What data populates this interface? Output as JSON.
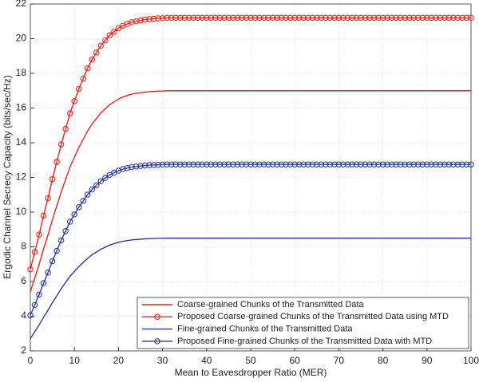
{
  "chart_data": {
    "type": "line",
    "xlabel": "Mean to Eavesdropper Ratio (MER)",
    "ylabel": "Ergodic Channel Secrecy Capacity (bits/sec/Hz)",
    "x": [
      0,
      1,
      2,
      3,
      4,
      5,
      6,
      7,
      8,
      9,
      10,
      11,
      12,
      13,
      14,
      15,
      16,
      17,
      18,
      19,
      20,
      21,
      22,
      23,
      24,
      25,
      26,
      27,
      28,
      29,
      30,
      31,
      32,
      33,
      34,
      35,
      36,
      37,
      38,
      39,
      40,
      41,
      42,
      43,
      44,
      45,
      46,
      47,
      48,
      49,
      50,
      51,
      52,
      53,
      54,
      55,
      56,
      57,
      58,
      59,
      60,
      61,
      62,
      63,
      64,
      65,
      66,
      67,
      68,
      69,
      70,
      71,
      72,
      73,
      74,
      75,
      76,
      77,
      78,
      79,
      80,
      81,
      82,
      83,
      84,
      85,
      86,
      87,
      88,
      89,
      90,
      91,
      92,
      93,
      94,
      95,
      96,
      97,
      98,
      99,
      100
    ],
    "xlim": [
      0,
      100
    ],
    "xticks": [
      0,
      10,
      20,
      30,
      40,
      50,
      60,
      70,
      80,
      90,
      100
    ],
    "ylim": [
      2,
      22
    ],
    "yticks": [
      2,
      4,
      6,
      8,
      10,
      12,
      14,
      16,
      18,
      20,
      22
    ],
    "grid": true,
    "legend": "lower right",
    "series": [
      {
        "name": "Coarse-grained Chunks of the Transmitted Data",
        "color": "#e8231f",
        "marker": false,
        "values": [
          5.4,
          6.2,
          7.0,
          7.88,
          8.68,
          9.56,
          10.36,
          11.16,
          11.88,
          12.6,
          13.16,
          13.72,
          14.2,
          14.68,
          15.08,
          15.4,
          15.72,
          15.96,
          16.2,
          16.36,
          16.52,
          16.64,
          16.72,
          16.8,
          16.84,
          16.88,
          16.92,
          16.94,
          16.96,
          16.98,
          16.98,
          17,
          17,
          17,
          17,
          17,
          17,
          17,
          17,
          17,
          17,
          17,
          17,
          17,
          17,
          17,
          17,
          17,
          17,
          17,
          17,
          17,
          17,
          17,
          17,
          17,
          17,
          17,
          17,
          17,
          17,
          17,
          17,
          17,
          17,
          17,
          17,
          17,
          17,
          17,
          17,
          17,
          17,
          17,
          17,
          17,
          17,
          17,
          17,
          17,
          17,
          17,
          17,
          17,
          17,
          17,
          17,
          17,
          17,
          17,
          17,
          17,
          17,
          17,
          17,
          17,
          17,
          17,
          17,
          17,
          17
        ]
      },
      {
        "name": "Proposed Coarse-grained Chunks of the Transmitted Data using MTD",
        "color": "#e8231f",
        "marker": true,
        "values": [
          6.7,
          7.7,
          8.7,
          9.8,
          10.8,
          11.9,
          12.9,
          13.9,
          14.8,
          15.7,
          16.4,
          17.1,
          17.7,
          18.3,
          18.8,
          19.2,
          19.6,
          19.9,
          20.2,
          20.4,
          20.6,
          20.75,
          20.85,
          20.95,
          21.0,
          21.05,
          21.1,
          21.13,
          21.15,
          21.17,
          21.18,
          21.2,
          21.2,
          21.2,
          21.2,
          21.2,
          21.2,
          21.2,
          21.2,
          21.2,
          21.2,
          21.2,
          21.2,
          21.2,
          21.2,
          21.2,
          21.2,
          21.2,
          21.2,
          21.2,
          21.2,
          21.2,
          21.2,
          21.2,
          21.2,
          21.2,
          21.2,
          21.2,
          21.2,
          21.2,
          21.2,
          21.2,
          21.2,
          21.2,
          21.2,
          21.2,
          21.2,
          21.2,
          21.2,
          21.2,
          21.2,
          21.2,
          21.2,
          21.2,
          21.2,
          21.2,
          21.2,
          21.2,
          21.2,
          21.2,
          21.2,
          21.2,
          21.2,
          21.2,
          21.2,
          21.2,
          21.2,
          21.2,
          21.2,
          21.2,
          21.2,
          21.2,
          21.2,
          21.2,
          21.2,
          21.2,
          21.2,
          21.2,
          21.2,
          21.2,
          21.2
        ]
      },
      {
        "name": "Fine-grained Chunks of the Transmitted Data",
        "color": "#2e3b98",
        "marker": false,
        "values": [
          2.7,
          3.1,
          3.5,
          3.94,
          4.34,
          4.78,
          5.18,
          5.58,
          5.94,
          6.3,
          6.58,
          6.86,
          7.1,
          7.34,
          7.54,
          7.7,
          7.86,
          7.98,
          8.1,
          8.18,
          8.26,
          8.32,
          8.36,
          8.4,
          8.42,
          8.44,
          8.46,
          8.47,
          8.48,
          8.49,
          8.49,
          8.5,
          8.5,
          8.5,
          8.5,
          8.5,
          8.5,
          8.5,
          8.5,
          8.5,
          8.5,
          8.5,
          8.5,
          8.5,
          8.5,
          8.5,
          8.5,
          8.5,
          8.5,
          8.5,
          8.5,
          8.5,
          8.5,
          8.5,
          8.5,
          8.5,
          8.5,
          8.5,
          8.5,
          8.5,
          8.5,
          8.5,
          8.5,
          8.5,
          8.5,
          8.5,
          8.5,
          8.5,
          8.5,
          8.5,
          8.5,
          8.5,
          8.5,
          8.5,
          8.5,
          8.5,
          8.5,
          8.5,
          8.5,
          8.5,
          8.5,
          8.5,
          8.5,
          8.5,
          8.5,
          8.5,
          8.5,
          8.5,
          8.5,
          8.5,
          8.5,
          8.5,
          8.5,
          8.5,
          8.5,
          8.5,
          8.5,
          8.5,
          8.5,
          8.5,
          8.5
        ]
      },
      {
        "name": "Proposed Fine-grained Chunks of the Transmitted Data with MTD",
        "color": "#2e3b98",
        "marker": true,
        "values": [
          4.05,
          4.65,
          5.25,
          5.91,
          6.51,
          7.17,
          7.77,
          8.37,
          8.91,
          9.45,
          9.87,
          10.29,
          10.65,
          11.01,
          11.31,
          11.55,
          11.79,
          11.97,
          12.15,
          12.27,
          12.39,
          12.48,
          12.54,
          12.6,
          12.63,
          12.66,
          12.69,
          12.71,
          12.72,
          12.73,
          12.74,
          12.75,
          12.75,
          12.75,
          12.75,
          12.75,
          12.75,
          12.75,
          12.75,
          12.75,
          12.75,
          12.75,
          12.75,
          12.75,
          12.75,
          12.75,
          12.75,
          12.75,
          12.75,
          12.75,
          12.75,
          12.75,
          12.75,
          12.75,
          12.75,
          12.75,
          12.75,
          12.75,
          12.75,
          12.75,
          12.75,
          12.75,
          12.75,
          12.75,
          12.75,
          12.75,
          12.75,
          12.75,
          12.75,
          12.75,
          12.75,
          12.75,
          12.75,
          12.75,
          12.75,
          12.75,
          12.75,
          12.75,
          12.75,
          12.75,
          12.75,
          12.75,
          12.75,
          12.75,
          12.75,
          12.75,
          12.75,
          12.75,
          12.75,
          12.75,
          12.75,
          12.75,
          12.75,
          12.75,
          12.75,
          12.75,
          12.75,
          12.75,
          12.75,
          12.75,
          12.75
        ]
      }
    ]
  }
}
